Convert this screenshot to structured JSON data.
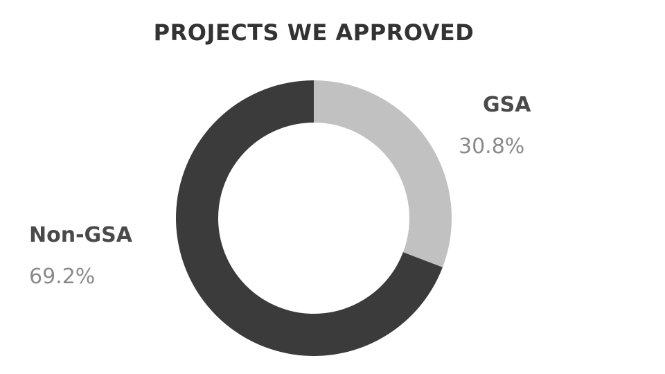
{
  "chart_data": {
    "type": "pie",
    "variant": "donut",
    "title": "PROJECTS WE APPROVED",
    "slices": [
      {
        "name": "GSA",
        "value": 30.8,
        "value_label": "30.8%",
        "color": "#c1c1c1"
      },
      {
        "name": "Non-GSA",
        "value": 69.2,
        "value_label": "69.2%",
        "color": "#3b3b3b"
      }
    ],
    "legend": "none"
  }
}
